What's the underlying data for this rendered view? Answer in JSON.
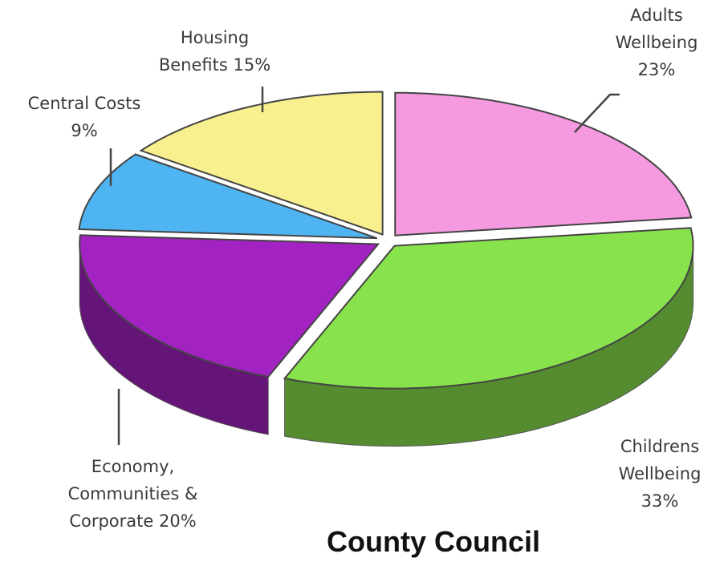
{
  "chart_data": {
    "type": "pie",
    "title": "County Council",
    "categories": [
      "Adults Wellbeing",
      "Childrens Wellbeing",
      "Economy, Communities & Corporate",
      "Central Costs",
      "Housing Benefits"
    ],
    "values": [
      23,
      33,
      20,
      9,
      15
    ],
    "value_labels": [
      "23%",
      "33%",
      "20%",
      "9%",
      "15%"
    ],
    "colors": [
      "#f59ae0",
      "#88e24c",
      "#a322c2",
      "#4fb4f2",
      "#f8f08e"
    ]
  }
}
